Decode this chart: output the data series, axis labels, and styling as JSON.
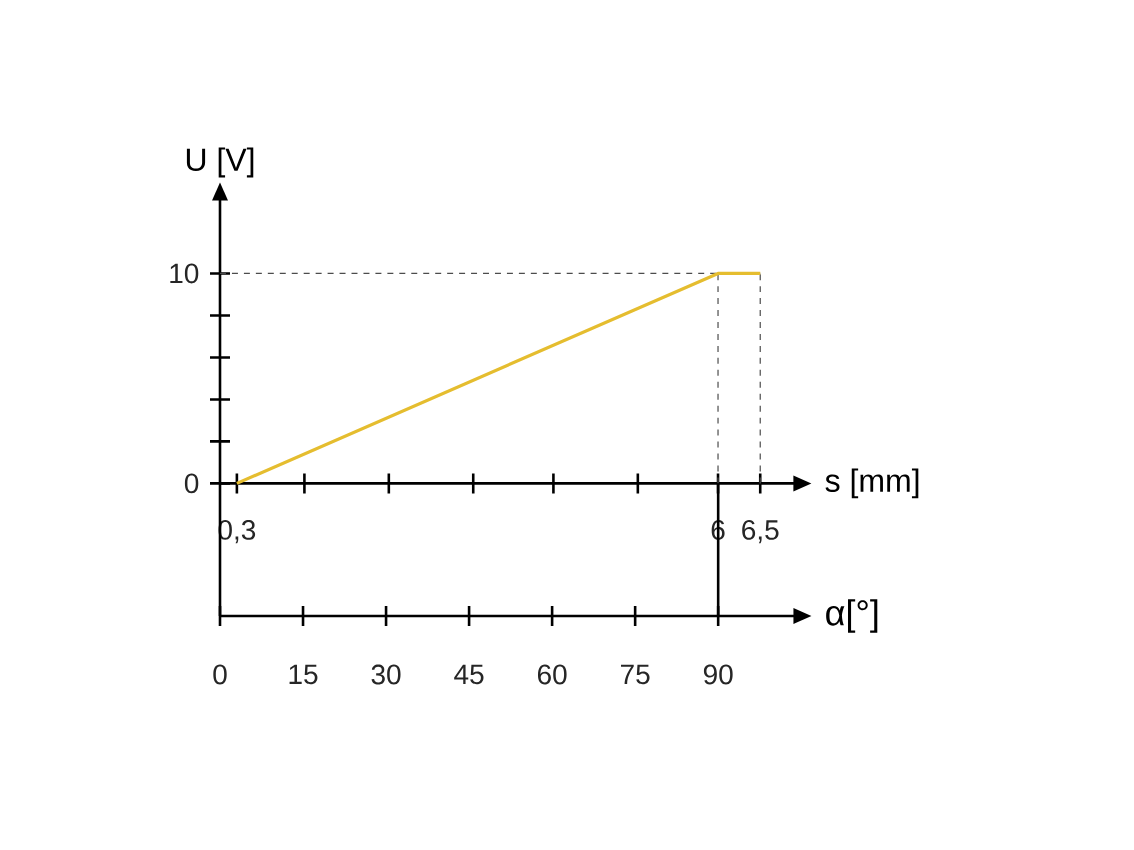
{
  "chart_data": {
    "type": "line",
    "xlabel": "s [mm]",
    "ylabel": "U [V]",
    "x2label": "α[°]",
    "x": [
      0.3,
      6,
      6.5
    ],
    "series": [
      {
        "color": "#e5bd2f",
        "values": [
          0,
          10,
          10
        ]
      }
    ],
    "xlim": [
      0.1,
      6.9
    ],
    "ylim": [
      0,
      13.5
    ],
    "xticks": [
      {
        "value": 0.3,
        "label": "0,3"
      },
      {
        "value": 1.1,
        "label": null
      },
      {
        "value": 2.1,
        "label": null
      },
      {
        "value": 3.1,
        "label": null
      },
      {
        "value": 4.05,
        "label": null
      },
      {
        "value": 5.05,
        "label": null
      },
      {
        "value": 6,
        "label": "6"
      },
      {
        "value": 6.5,
        "label": "6,5"
      }
    ],
    "yticks": [
      0,
      {
        "value": 2,
        "label": null
      },
      {
        "value": 4,
        "label": null
      },
      {
        "value": 6,
        "label": null
      },
      {
        "value": 8,
        "label": null
      },
      10
    ],
    "x2lim": [
      0,
      103.7
    ],
    "x2ticks": [
      0,
      15,
      30,
      45,
      60,
      75,
      90
    ],
    "ref_lines": [
      {
        "axis": "y",
        "value": 10,
        "line_style": "dashed"
      },
      {
        "axis": "x",
        "value": 6,
        "line_style": "dashed"
      },
      {
        "axis": "x",
        "value": 6.5,
        "line_style": "dashed"
      }
    ]
  }
}
